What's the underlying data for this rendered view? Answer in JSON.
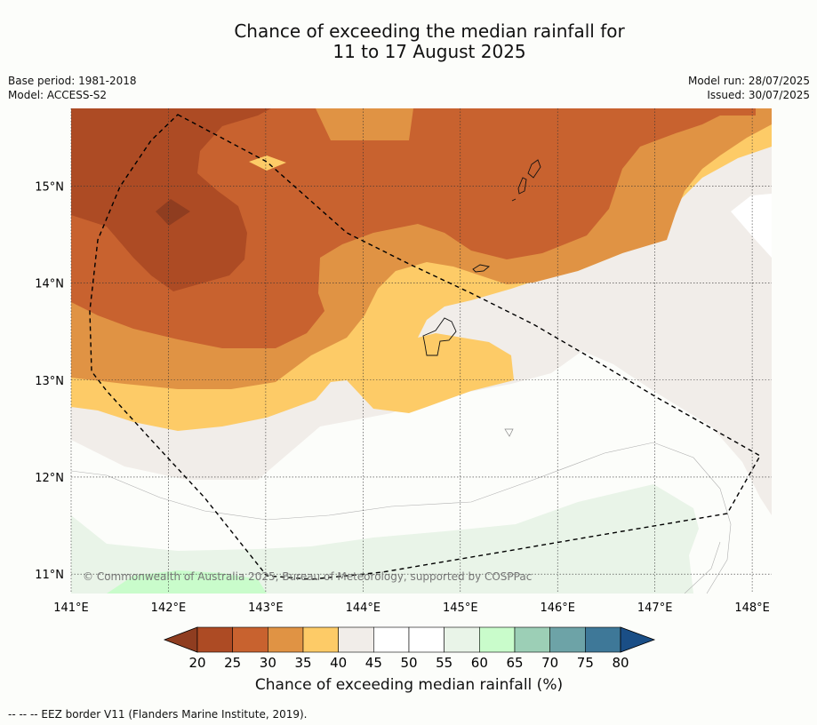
{
  "header": {
    "title_line1": "Chance of exceeding the median rainfall for",
    "title_line2": "11 to 17 August 2025",
    "base_period": "Base period: 1981-2018",
    "model": "Model: ACCESS-S2",
    "model_run": "Model run: 28/07/2025",
    "issued": "Issued: 30/07/2025"
  },
  "map": {
    "lon_range": [
      141,
      148.2
    ],
    "lat_range": [
      10.8,
      15.8
    ],
    "lon_ticks": [
      "141°E",
      "142°E",
      "143°E",
      "144°E",
      "145°E",
      "146°E",
      "147°E",
      "148°E"
    ],
    "lat_ticks": [
      "15°N",
      "14°N",
      "13°N",
      "12°N",
      "11°N"
    ],
    "gridlines": true,
    "eez_border": "dashed",
    "copyright": "© Commonwealth of Australia 2025, Bureau of Meteorology, supported by COSPPac"
  },
  "colorbar": {
    "ticks": [
      "20",
      "25",
      "30",
      "35",
      "40",
      "45",
      "50",
      "55",
      "60",
      "65",
      "70",
      "75",
      "80"
    ],
    "colors": [
      "#ad4b24",
      "#c8622f",
      "#e09344",
      "#fdcb67",
      "#f1ede9",
      "#ffffff",
      "#ffffff",
      "#e9f4e8",
      "#c9fccb",
      "#9ccfb6",
      "#6da3a7",
      "#3e7898"
    ],
    "low_extend_color": "#8f3d20",
    "high_extend_color": "#1a4e86",
    "label": "Chance of exceeding median rainfall (%)"
  },
  "footnote": "--  --  -- EEZ border V11 (Flanders Marine Institute, 2019)."
}
